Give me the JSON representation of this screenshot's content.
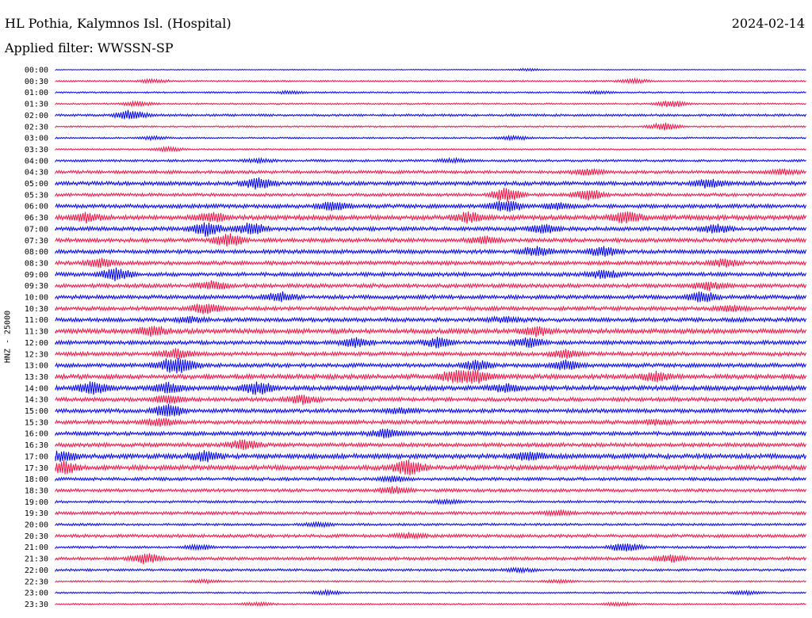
{
  "header": {
    "title": "HL Pothia, Kalymnos Isl. (Hospital)",
    "date": "2024-02-14",
    "filter": "Applied filter: WWSSN-SP"
  },
  "chart_data": {
    "type": "line",
    "title": "HL Pothia, Kalymnos Isl. (Hospital)",
    "ylabel": "HNZ - 25000",
    "trace_colors": [
      "#0000ee",
      "#ee1144"
    ],
    "rows": [
      {
        "label": "00:00",
        "amp": 1,
        "bursts": [
          [
            0.63,
            3
          ]
        ]
      },
      {
        "label": "00:30",
        "amp": 2,
        "bursts": [
          [
            0.13,
            4
          ],
          [
            0.77,
            5
          ]
        ]
      },
      {
        "label": "01:00",
        "amp": 2,
        "bursts": [
          [
            0.31,
            3
          ],
          [
            0.72,
            3
          ]
        ]
      },
      {
        "label": "01:30",
        "amp": 2,
        "bursts": [
          [
            0.11,
            6
          ],
          [
            0.82,
            9
          ]
        ]
      },
      {
        "label": "02:00",
        "amp": 3,
        "bursts": [
          [
            0.1,
            12
          ]
        ]
      },
      {
        "label": "02:30",
        "amp": 2,
        "bursts": [
          [
            0.81,
            9
          ]
        ]
      },
      {
        "label": "03:00",
        "amp": 2,
        "bursts": [
          [
            0.13,
            4
          ],
          [
            0.61,
            5
          ]
        ]
      },
      {
        "label": "03:30",
        "amp": 2,
        "bursts": [
          [
            0.15,
            5
          ]
        ]
      },
      {
        "label": "04:00",
        "amp": 3,
        "bursts": [
          [
            0.27,
            4
          ],
          [
            0.53,
            4
          ]
        ]
      },
      {
        "label": "04:30",
        "amp": 4,
        "bursts": [
          [
            0.71,
            8
          ],
          [
            0.97,
            6
          ]
        ]
      },
      {
        "label": "05:00",
        "amp": 5,
        "bursts": [
          [
            0.27,
            14
          ],
          [
            0.87,
            10
          ]
        ]
      },
      {
        "label": "05:30",
        "amp": 4,
        "bursts": [
          [
            0.6,
            16
          ],
          [
            0.71,
            12
          ]
        ]
      },
      {
        "label": "06:00",
        "amp": 5,
        "bursts": [
          [
            0.37,
            12
          ],
          [
            0.6,
            14
          ],
          [
            0.67,
            8
          ]
        ]
      },
      {
        "label": "06:30",
        "amp": 6,
        "bursts": [
          [
            0.04,
            11
          ],
          [
            0.21,
            10
          ],
          [
            0.55,
            12
          ],
          [
            0.76,
            14
          ]
        ]
      },
      {
        "label": "07:00",
        "amp": 5,
        "bursts": [
          [
            0.2,
            16
          ],
          [
            0.26,
            14
          ],
          [
            0.65,
            10
          ],
          [
            0.88,
            9
          ]
        ]
      },
      {
        "label": "07:30",
        "amp": 5,
        "bursts": [
          [
            0.23,
            16
          ],
          [
            0.57,
            8
          ]
        ]
      },
      {
        "label": "08:00",
        "amp": 5,
        "bursts": [
          [
            0.64,
            11
          ],
          [
            0.73,
            12
          ]
        ]
      },
      {
        "label": "08:30",
        "amp": 5,
        "bursts": [
          [
            0.06,
            10
          ],
          [
            0.89,
            8
          ]
        ]
      },
      {
        "label": "09:00",
        "amp": 5,
        "bursts": [
          [
            0.08,
            14
          ],
          [
            0.73,
            10
          ]
        ]
      },
      {
        "label": "09:30",
        "amp": 5,
        "bursts": [
          [
            0.21,
            10
          ],
          [
            0.87,
            9
          ]
        ]
      },
      {
        "label": "10:00",
        "amp": 5,
        "bursts": [
          [
            0.3,
            11
          ],
          [
            0.86,
            13
          ]
        ]
      },
      {
        "label": "10:30",
        "amp": 5,
        "bursts": [
          [
            0.2,
            12
          ],
          [
            0.9,
            6
          ]
        ]
      },
      {
        "label": "11:00",
        "amp": 5,
        "bursts": [
          [
            0.18,
            6
          ],
          [
            0.6,
            6
          ]
        ]
      },
      {
        "label": "11:30",
        "amp": 6,
        "bursts": [
          [
            0.13,
            12
          ],
          [
            0.64,
            10
          ]
        ]
      },
      {
        "label": "12:00",
        "amp": 5,
        "bursts": [
          [
            0.4,
            11
          ],
          [
            0.51,
            12
          ],
          [
            0.63,
            11
          ]
        ]
      },
      {
        "label": "12:30",
        "amp": 5,
        "bursts": [
          [
            0.16,
            11
          ],
          [
            0.68,
            10
          ]
        ]
      },
      {
        "label": "13:00",
        "amp": 5,
        "bursts": [
          [
            0.15,
            12
          ],
          [
            0.17,
            14
          ],
          [
            0.56,
            11
          ],
          [
            0.68,
            12
          ]
        ]
      },
      {
        "label": "13:30",
        "amp": 6,
        "bursts": [
          [
            0.53,
            14
          ],
          [
            0.56,
            16
          ],
          [
            0.8,
            10
          ]
        ]
      },
      {
        "label": "14:00",
        "amp": 6,
        "bursts": [
          [
            0.05,
            14
          ],
          [
            0.15,
            12
          ],
          [
            0.27,
            14
          ],
          [
            0.6,
            8
          ]
        ]
      },
      {
        "label": "14:30",
        "amp": 5,
        "bursts": [
          [
            0.15,
            10
          ],
          [
            0.33,
            10
          ]
        ]
      },
      {
        "label": "15:00",
        "amp": 5,
        "bursts": [
          [
            0.15,
            16
          ],
          [
            0.46,
            6
          ]
        ]
      },
      {
        "label": "15:30",
        "amp": 5,
        "bursts": [
          [
            0.14,
            9
          ],
          [
            0.8,
            6
          ]
        ]
      },
      {
        "label": "16:00",
        "amp": 5,
        "bursts": [
          [
            0.44,
            11
          ]
        ]
      },
      {
        "label": "16:30",
        "amp": 5,
        "bursts": [
          [
            0.25,
            12
          ]
        ]
      },
      {
        "label": "17:00",
        "amp": 6,
        "bursts": [
          [
            0.01,
            12
          ],
          [
            0.2,
            12
          ],
          [
            0.63,
            10
          ]
        ]
      },
      {
        "label": "17:30",
        "amp": 6,
        "bursts": [
          [
            0.01,
            14
          ],
          [
            0.47,
            18
          ]
        ]
      },
      {
        "label": "18:00",
        "amp": 4,
        "bursts": [
          [
            0.45,
            6
          ]
        ]
      },
      {
        "label": "18:30",
        "amp": 4,
        "bursts": [
          [
            0.45,
            8
          ]
        ]
      },
      {
        "label": "19:00",
        "amp": 3,
        "bursts": [
          [
            0.52,
            5
          ]
        ]
      },
      {
        "label": "19:30",
        "amp": 4,
        "bursts": [
          [
            0.67,
            6
          ]
        ]
      },
      {
        "label": "20:00",
        "amp": 3,
        "bursts": [
          [
            0.35,
            5
          ]
        ]
      },
      {
        "label": "20:30",
        "amp": 4,
        "bursts": [
          [
            0.47,
            6
          ]
        ]
      },
      {
        "label": "21:00",
        "amp": 3,
        "bursts": [
          [
            0.19,
            6
          ],
          [
            0.76,
            12
          ]
        ]
      },
      {
        "label": "21:30",
        "amp": 4,
        "bursts": [
          [
            0.12,
            12
          ],
          [
            0.82,
            8
          ]
        ]
      },
      {
        "label": "22:00",
        "amp": 3,
        "bursts": [
          [
            0.62,
            5
          ]
        ]
      },
      {
        "label": "22:30",
        "amp": 2,
        "bursts": [
          [
            0.2,
            4
          ],
          [
            0.67,
            4
          ]
        ]
      },
      {
        "label": "23:00",
        "amp": 2,
        "bursts": [
          [
            0.36,
            5
          ],
          [
            0.92,
            5
          ]
        ]
      },
      {
        "label": "23:30",
        "amp": 2,
        "bursts": [
          [
            0.27,
            4
          ],
          [
            0.75,
            4
          ]
        ]
      }
    ]
  }
}
